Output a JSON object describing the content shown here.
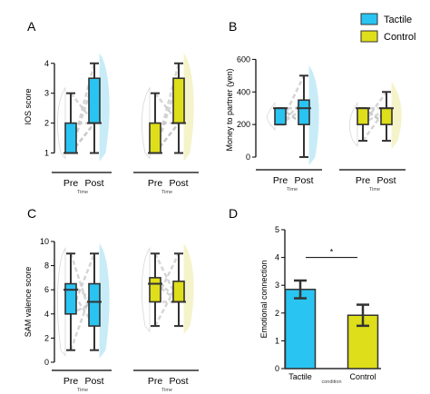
{
  "colors": {
    "tactile": "#29c4f2",
    "control": "#dede1a",
    "edge": "#333333",
    "lines": "#c4c4c4",
    "violin_tactile": "#bfe9f6",
    "violin_control": "#f4f2c0"
  },
  "legend": [
    {
      "label": "Tactile",
      "color": "#29c4f2"
    },
    {
      "label": "Control",
      "color": "#dede1a"
    }
  ],
  "chart_data": [
    {
      "panel": "A",
      "type": "box",
      "ylabel": "IOS score",
      "xlabel": "Time",
      "ylim": [
        0.5,
        4.6
      ],
      "yticks": [
        1,
        2,
        3,
        4
      ],
      "groups": [
        {
          "group": "Tactile",
          "categories": [
            "Pre",
            "Post"
          ],
          "boxes": [
            {
              "min": 1,
              "q1": 1,
              "median": 1,
              "q3": 2,
              "max": 3
            },
            {
              "min": 1,
              "q1": 2,
              "median": 2,
              "q3": 3.5,
              "max": 4
            }
          ]
        },
        {
          "group": "Control",
          "categories": [
            "Pre",
            "Post"
          ],
          "boxes": [
            {
              "min": 1,
              "q1": 1,
              "median": 1,
              "q3": 2,
              "max": 3
            },
            {
              "min": 1,
              "q1": 2,
              "median": 2,
              "q3": 3.5,
              "max": 4
            }
          ]
        }
      ]
    },
    {
      "panel": "B",
      "type": "box",
      "ylabel": "Money to partner (yen)",
      "xlabel": "Time",
      "ylim": [
        -50,
        630
      ],
      "yticks": [
        0,
        200,
        400,
        600
      ],
      "groups": [
        {
          "group": "Tactile",
          "categories": [
            "Pre",
            "Post"
          ],
          "boxes": [
            {
              "min": 200,
              "q1": 200,
              "median": 300,
              "q3": 300,
              "max": 300
            },
            {
              "min": 0,
              "q1": 200,
              "median": 300,
              "q3": 350,
              "max": 500
            }
          ]
        },
        {
          "group": "Control",
          "categories": [
            "Pre",
            "Post"
          ],
          "boxes": [
            {
              "min": 100,
              "q1": 200,
              "median": 300,
              "q3": 300,
              "max": 300
            },
            {
              "min": 100,
              "q1": 200,
              "median": 300,
              "q3": 300,
              "max": 400
            }
          ]
        }
      ]
    },
    {
      "panel": "C",
      "type": "box",
      "ylabel": "SAM valence score",
      "xlabel": "Time",
      "ylim": [
        -0.3,
        10.3
      ],
      "yticks": [
        0,
        2,
        4,
        6,
        8,
        10
      ],
      "groups": [
        {
          "group": "Tactile",
          "categories": [
            "Pre",
            "Post"
          ],
          "boxes": [
            {
              "min": 1,
              "q1": 4,
              "median": 6,
              "q3": 6.5,
              "max": 9
            },
            {
              "min": 1,
              "q1": 3,
              "median": 5,
              "q3": 6.5,
              "max": 9
            }
          ]
        },
        {
          "group": "Control",
          "categories": [
            "Pre",
            "Post"
          ],
          "boxes": [
            {
              "min": 3,
              "q1": 5,
              "median": 6.5,
              "q3": 7,
              "max": 9
            },
            {
              "min": 3,
              "q1": 5,
              "median": 5,
              "q3": 6.7,
              "max": 9
            }
          ]
        }
      ]
    },
    {
      "panel": "D",
      "type": "bar",
      "ylabel": "Emotional connection",
      "xlabel": "condition",
      "ylim": [
        0,
        5
      ],
      "yticks": [
        0,
        1,
        2,
        3,
        4,
        5
      ],
      "categories": [
        "Tactile",
        "Control"
      ],
      "values": [
        2.85,
        1.92
      ],
      "errors": [
        0.32,
        0.38
      ],
      "significance": "*"
    }
  ]
}
